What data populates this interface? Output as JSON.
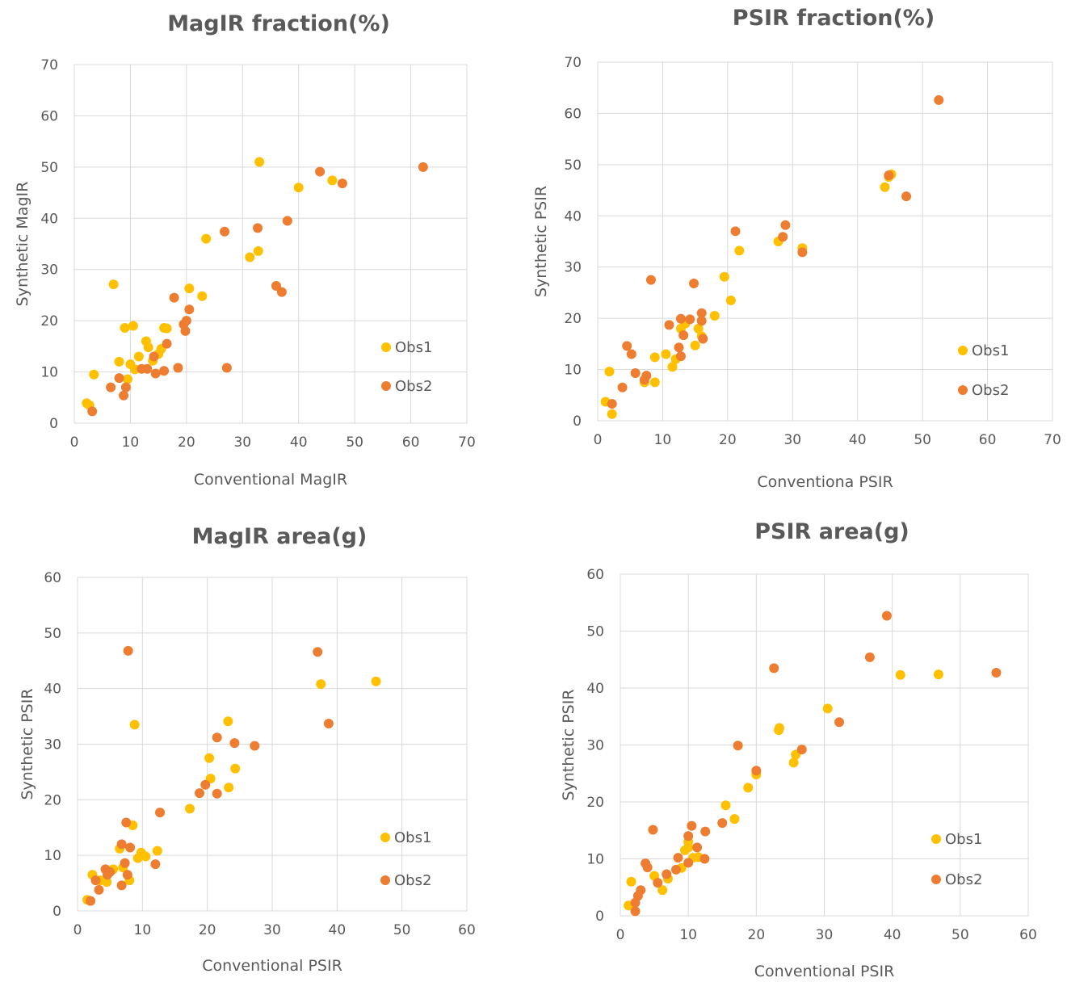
{
  "colors": {
    "obs1": "#FFC000",
    "obs2": "#ED7D31",
    "grid": "#D9D9D9",
    "text": "#595959"
  },
  "chart_data": [
    {
      "type": "scatter",
      "title": "MagIR fraction(%)",
      "xlabel": "Conventional MagIR",
      "ylabel": "Synthetic MagIR",
      "xlim": [
        0,
        70
      ],
      "ylim": [
        0,
        70
      ],
      "xticks": [
        "0",
        "10",
        "20",
        "30",
        "40",
        "50",
        "60",
        "70"
      ],
      "yticks": [
        "0",
        "10",
        "20",
        "30",
        "40",
        "50",
        "60",
        "70"
      ],
      "legend": "right",
      "grid": true,
      "series": [
        {
          "name": "Obs1",
          "color": "#FFC000",
          "points": [
            [
              2.2,
              3.9
            ],
            [
              2.7,
              3.5
            ],
            [
              3.5,
              9.5
            ],
            [
              7,
              27.1
            ],
            [
              8,
              12
            ],
            [
              9,
              18.6
            ],
            [
              9.5,
              8.6
            ],
            [
              10,
              11.5
            ],
            [
              10.5,
              19
            ],
            [
              10.8,
              10.5
            ],
            [
              11.5,
              13
            ],
            [
              12.8,
              16
            ],
            [
              13.2,
              14.8
            ],
            [
              14,
              12.2
            ],
            [
              15,
              13.5
            ],
            [
              15.5,
              14.5
            ],
            [
              16,
              18.6
            ],
            [
              16.5,
              18.5
            ],
            [
              20.5,
              26.3
            ],
            [
              22.8,
              24.8
            ],
            [
              23.5,
              36
            ],
            [
              31.3,
              32.4
            ],
            [
              32.8,
              33.6
            ],
            [
              33,
              51
            ],
            [
              40,
              46
            ],
            [
              46,
              47.4
            ]
          ]
        },
        {
          "name": "Obs2",
          "color": "#ED7D31",
          "points": [
            [
              3.2,
              2.3
            ],
            [
              6.5,
              7
            ],
            [
              8,
              8.8
            ],
            [
              8.8,
              5.4
            ],
            [
              9.2,
              7
            ],
            [
              12,
              10.6
            ],
            [
              13,
              10.6
            ],
            [
              14.2,
              13
            ],
            [
              14.5,
              9.7
            ],
            [
              16,
              10.2
            ],
            [
              16.5,
              15.5
            ],
            [
              17.8,
              24.5
            ],
            [
              18.5,
              10.8
            ],
            [
              19.5,
              19.3
            ],
            [
              19.8,
              18
            ],
            [
              20,
              20
            ],
            [
              20.5,
              22.2
            ],
            [
              26.8,
              37.4
            ],
            [
              27.2,
              10.8
            ],
            [
              32.7,
              38.1
            ],
            [
              36,
              26.8
            ],
            [
              37,
              25.6
            ],
            [
              38,
              39.5
            ],
            [
              43.8,
              49.1
            ],
            [
              47.8,
              46.8
            ],
            [
              62.2,
              50
            ]
          ]
        }
      ]
    },
    {
      "type": "scatter",
      "title": "PSIR fraction(%)",
      "xlabel": "Conventiona PSIR",
      "ylabel": "Synthetic PSIR",
      "xlim": [
        0,
        70
      ],
      "ylim": [
        0,
        70
      ],
      "xticks": [
        "0",
        "10",
        "20",
        "30",
        "40",
        "50",
        "60",
        "70"
      ],
      "yticks": [
        "0",
        "10",
        "20",
        "30",
        "40",
        "50",
        "60",
        "70"
      ],
      "legend": "right",
      "grid": true,
      "series": [
        {
          "name": "Obs1",
          "color": "#FFC000",
          "points": [
            [
              1.2,
              3.7
            ],
            [
              1.8,
              9.6
            ],
            [
              2.2,
              1.3
            ],
            [
              7.2,
              7.5
            ],
            [
              8.8,
              12.4
            ],
            [
              8.8,
              7.5
            ],
            [
              10.5,
              13
            ],
            [
              11.5,
              10.5
            ],
            [
              12,
              12
            ],
            [
              12.8,
              18
            ],
            [
              13.5,
              19
            ],
            [
              15,
              14.7
            ],
            [
              15.5,
              18
            ],
            [
              16,
              16.5
            ],
            [
              18,
              20.5
            ],
            [
              19.5,
              28.1
            ],
            [
              20.5,
              23.5
            ],
            [
              21.8,
              33.2
            ],
            [
              27.8,
              35
            ],
            [
              31.5,
              33.7
            ],
            [
              44.2,
              45.6
            ],
            [
              44.8,
              47.6
            ],
            [
              45.2,
              48.1
            ]
          ]
        },
        {
          "name": "Obs2",
          "color": "#ED7D31",
          "points": [
            [
              2.2,
              3.3
            ],
            [
              3.8,
              6.5
            ],
            [
              4.5,
              14.6
            ],
            [
              5.2,
              13
            ],
            [
              5.8,
              9.3
            ],
            [
              7.2,
              8
            ],
            [
              7.5,
              8.8
            ],
            [
              8.2,
              27.5
            ],
            [
              11,
              18.7
            ],
            [
              12.5,
              14.3
            ],
            [
              12.8,
              19.9
            ],
            [
              12.8,
              12.6
            ],
            [
              13.2,
              16.7
            ],
            [
              14.2,
              19.8
            ],
            [
              14.8,
              26.8
            ],
            [
              16,
              21
            ],
            [
              16,
              19.5
            ],
            [
              16.2,
              16
            ],
            [
              21.2,
              37
            ],
            [
              28.5,
              35.9
            ],
            [
              28.9,
              38.2
            ],
            [
              31.5,
              32.9
            ],
            [
              44.8,
              47.9
            ],
            [
              47.5,
              43.8
            ],
            [
              52.5,
              62.6
            ]
          ]
        }
      ]
    },
    {
      "type": "scatter",
      "title": "MagIR area(g)",
      "xlabel": "Conventional PSIR",
      "ylabel": "Synthetic PSIR",
      "xlim": [
        0,
        60
      ],
      "ylim": [
        0,
        60
      ],
      "xticks": [
        "0",
        "10",
        "20",
        "30",
        "40",
        "50",
        "60"
      ],
      "yticks": [
        "0",
        "10",
        "20",
        "30",
        "40",
        "50",
        "60"
      ],
      "legend": "right",
      "grid": true,
      "series": [
        {
          "name": "Obs1",
          "color": "#FFC000",
          "points": [
            [
              1.5,
              2
            ],
            [
              2.3,
              6.5
            ],
            [
              3.5,
              5.5
            ],
            [
              4.5,
              5.2
            ],
            [
              5.5,
              7.5
            ],
            [
              6.5,
              11.2
            ],
            [
              7,
              7.8
            ],
            [
              8,
              5.5
            ],
            [
              8.5,
              15.4
            ],
            [
              8.8,
              33.5
            ],
            [
              9.3,
              9.5
            ],
            [
              9.8,
              10.5
            ],
            [
              10.5,
              9.8
            ],
            [
              12.3,
              10.8
            ],
            [
              17.3,
              18.4
            ],
            [
              20.3,
              27.5
            ],
            [
              20.5,
              23.8
            ],
            [
              23.2,
              34.1
            ],
            [
              23.3,
              22.2
            ],
            [
              24.3,
              25.6
            ],
            [
              37.5,
              40.8
            ],
            [
              46,
              41.3
            ]
          ]
        },
        {
          "name": "Obs2",
          "color": "#ED7D31",
          "points": [
            [
              2,
              1.8
            ],
            [
              2.8,
              5.5
            ],
            [
              3.3,
              3.8
            ],
            [
              4.3,
              7.5
            ],
            [
              4.6,
              6.5
            ],
            [
              5,
              7
            ],
            [
              6.8,
              4.6
            ],
            [
              6.8,
              12
            ],
            [
              7.3,
              8.6
            ],
            [
              7.5,
              15.9
            ],
            [
              7.7,
              6.5
            ],
            [
              7.8,
              46.8
            ],
            [
              8.1,
              11.4
            ],
            [
              12,
              8.4
            ],
            [
              12.7,
              17.7
            ],
            [
              18.8,
              21.2
            ],
            [
              19.7,
              22.7
            ],
            [
              21.5,
              31.2
            ],
            [
              21.5,
              21.1
            ],
            [
              24.2,
              30.2
            ],
            [
              27.3,
              29.7
            ],
            [
              37,
              46.6
            ],
            [
              38.7,
              33.7
            ]
          ]
        }
      ]
    },
    {
      "type": "scatter",
      "title": "PSIR area(g)",
      "xlabel": "Conventional PSIR",
      "ylabel": "Synthetic PSIR",
      "xlim": [
        0,
        60
      ],
      "ylim": [
        0,
        60
      ],
      "xticks": [
        "0",
        "10",
        "20",
        "30",
        "40",
        "50",
        "60"
      ],
      "yticks": [
        "0",
        "10",
        "20",
        "30",
        "40",
        "50",
        "60"
      ],
      "legend": "right",
      "grid": true,
      "series": [
        {
          "name": "Obs1",
          "color": "#FFC000",
          "points": [
            [
              1.2,
              1.8
            ],
            [
              1.6,
              6
            ],
            [
              5,
              7
            ],
            [
              6.2,
              4.5
            ],
            [
              7,
              6.5
            ],
            [
              9,
              8.4
            ],
            [
              9.5,
              11.5
            ],
            [
              10,
              12
            ],
            [
              10,
              13
            ],
            [
              10.7,
              10.2
            ],
            [
              11.5,
              10.3
            ],
            [
              15.5,
              19.4
            ],
            [
              16.8,
              17
            ],
            [
              18.8,
              22.5
            ],
            [
              20,
              24.8
            ],
            [
              23.3,
              32.6
            ],
            [
              23.4,
              33
            ],
            [
              25.5,
              26.9
            ],
            [
              25.8,
              28.3
            ],
            [
              30.5,
              36.4
            ],
            [
              41.2,
              42.3
            ],
            [
              46.8,
              42.4
            ]
          ]
        },
        {
          "name": "Obs2",
          "color": "#ED7D31",
          "points": [
            [
              2.2,
              0.8
            ],
            [
              2.2,
              2.3
            ],
            [
              2.6,
              3.5
            ],
            [
              3,
              4.5
            ],
            [
              3.7,
              9.2
            ],
            [
              4,
              8.5
            ],
            [
              4.8,
              15.1
            ],
            [
              5.5,
              5.8
            ],
            [
              6.8,
              7.3
            ],
            [
              8.2,
              8.1
            ],
            [
              8.5,
              10.2
            ],
            [
              10,
              9.3
            ],
            [
              10,
              14
            ],
            [
              10.5,
              15.8
            ],
            [
              11.3,
              12
            ],
            [
              12.4,
              10
            ],
            [
              12.5,
              14.8
            ],
            [
              15,
              16.3
            ],
            [
              17.3,
              29.9
            ],
            [
              20,
              25.5
            ],
            [
              22.6,
              43.5
            ],
            [
              26.7,
              29.2
            ],
            [
              32.2,
              34
            ],
            [
              36.7,
              45.4
            ],
            [
              39.2,
              52.7
            ],
            [
              55.3,
              42.7
            ]
          ]
        }
      ]
    }
  ]
}
